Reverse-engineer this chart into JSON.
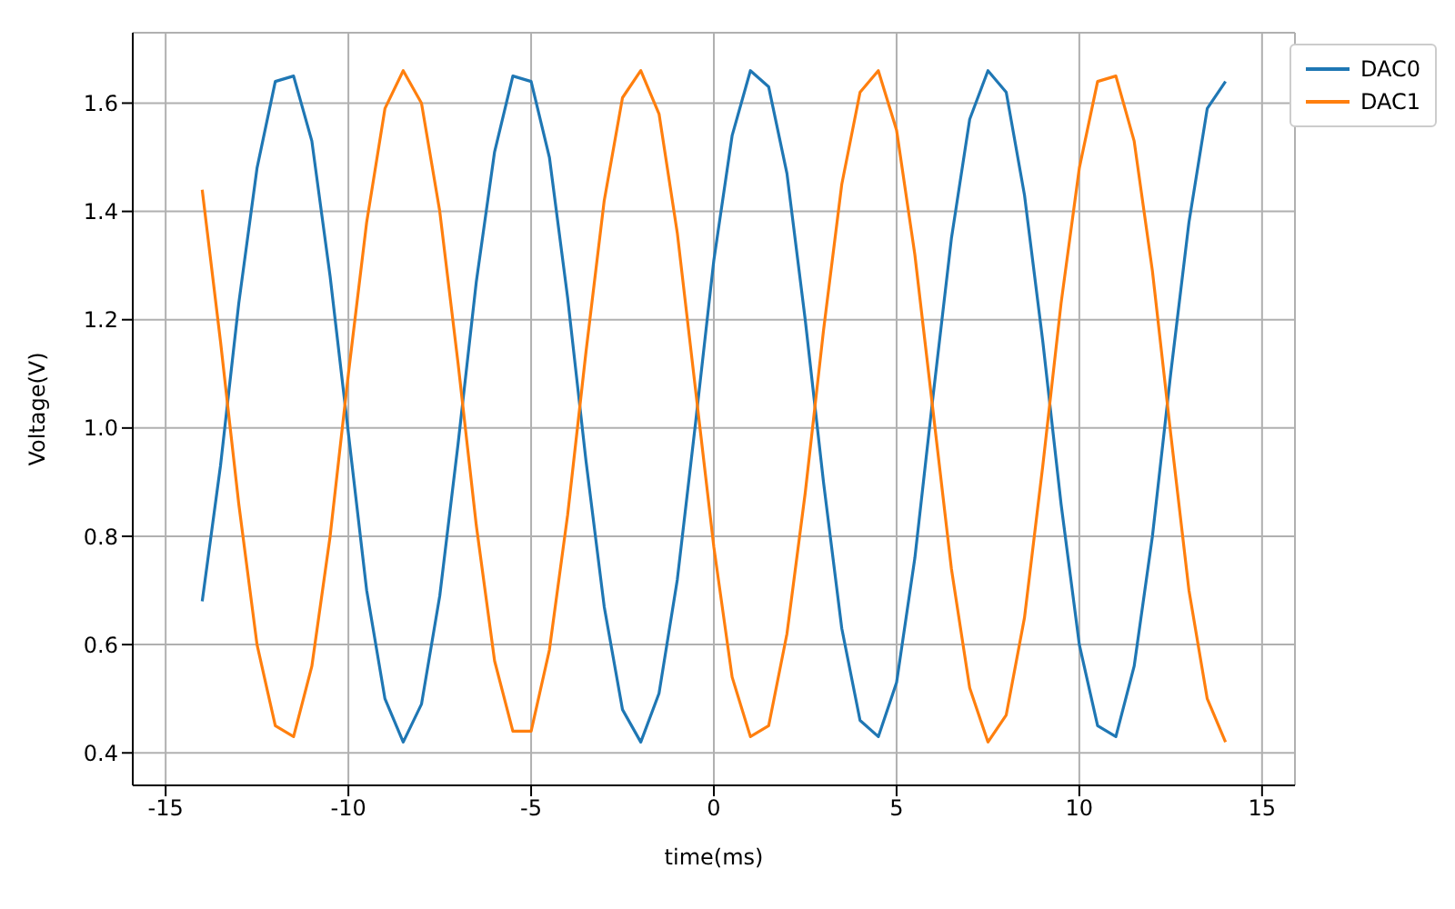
{
  "chart_data": {
    "type": "line",
    "xlabel": "time(ms)",
    "ylabel": "Voltage(V)",
    "x": [
      -14,
      -13.5,
      -13,
      -12.5,
      -12,
      -11.5,
      -11,
      -10.5,
      -10,
      -9.5,
      -9,
      -8.5,
      -8,
      -7.5,
      -7,
      -6.5,
      -6,
      -5.5,
      -5,
      -4.5,
      -4,
      -3.5,
      -3,
      -2.5,
      -2,
      -1.5,
      -1,
      -0.5,
      0,
      0.5,
      1,
      1.5,
      2,
      2.5,
      3,
      3.5,
      4,
      4.5,
      5,
      5.5,
      6,
      6.5,
      7,
      7.5,
      8,
      8.5,
      9,
      9.5,
      10,
      10.5,
      11,
      11.5,
      12,
      12.5,
      13,
      13.5,
      14
    ],
    "series": [
      {
        "name": "DAC0",
        "color": "#1f77b4",
        "values": [
          0.68,
          0.93,
          1.23,
          1.48,
          1.64,
          1.65,
          1.53,
          1.28,
          0.99,
          0.7,
          0.5,
          0.42,
          0.49,
          0.69,
          0.97,
          1.27,
          1.51,
          1.65,
          1.64,
          1.5,
          1.24,
          0.94,
          0.67,
          0.48,
          0.42,
          0.51,
          0.72,
          1.01,
          1.31,
          1.54,
          1.66,
          1.63,
          1.47,
          1.2,
          0.9,
          0.63,
          0.46,
          0.43,
          0.53,
          0.76,
          1.06,
          1.35,
          1.57,
          1.66,
          1.62,
          1.43,
          1.16,
          0.86,
          0.6,
          0.45,
          0.43,
          0.56,
          0.8,
          1.1,
          1.38,
          1.59,
          1.64
        ]
      },
      {
        "name": "DAC1",
        "color": "#ff7f0e",
        "values": [
          1.44,
          1.16,
          0.86,
          0.6,
          0.45,
          0.43,
          0.56,
          0.8,
          1.1,
          1.38,
          1.59,
          1.66,
          1.6,
          1.4,
          1.12,
          0.82,
          0.57,
          0.44,
          0.44,
          0.59,
          0.84,
          1.14,
          1.42,
          1.61,
          1.66,
          1.58,
          1.36,
          1.07,
          0.78,
          0.54,
          0.43,
          0.45,
          0.62,
          0.88,
          1.18,
          1.45,
          1.62,
          1.66,
          1.55,
          1.32,
          1.03,
          0.74,
          0.52,
          0.42,
          0.47,
          0.65,
          0.93,
          1.23,
          1.48,
          1.64,
          1.65,
          1.53,
          1.29,
          0.99,
          0.7,
          0.5,
          0.42
        ]
      }
    ],
    "xlim": [
      -15.9,
      15.9
    ],
    "xticks": [
      -15,
      -10,
      -5,
      0,
      5,
      10,
      15
    ],
    "ylim": [
      0.34,
      1.73
    ],
    "yticks": [
      0.4,
      0.6,
      0.8,
      {
        "value": 1,
        "label": "1.0"
      },
      1.2,
      1.4,
      1.6
    ],
    "grid": true,
    "legend": "top right",
    "marker": "none",
    "line_style": "solid"
  }
}
